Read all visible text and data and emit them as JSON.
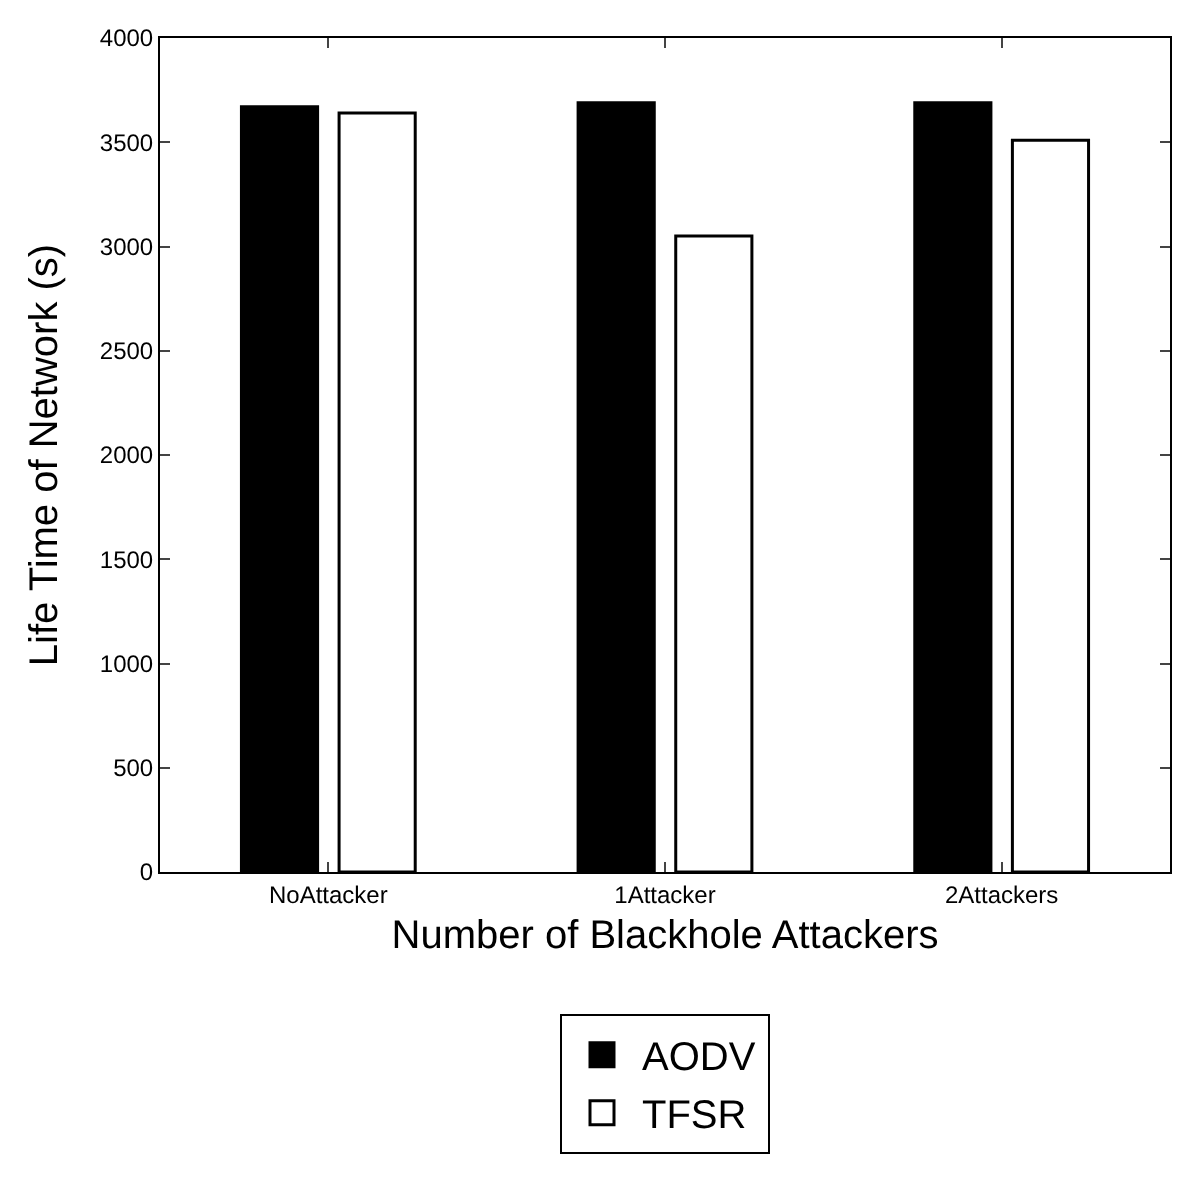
{
  "chart_data": {
    "type": "bar",
    "xlabel": "Number of Blackhole Attackers",
    "ylabel": "Life Time of Network (s)",
    "categories": [
      "NoAttacker",
      "1Attacker",
      "2Attackers"
    ],
    "series": [
      {
        "name": "AODV",
        "color": "#000000",
        "values": [
          3670,
          3690,
          3690
        ]
      },
      {
        "name": "TFSR",
        "color": "#ffffff",
        "values": [
          3640,
          3050,
          3510
        ]
      }
    ],
    "ylim": [
      0,
      4000
    ],
    "yticks": [
      0,
      500,
      1000,
      1500,
      2000,
      2500,
      3000,
      3500,
      4000
    ],
    "legend": "bottom"
  }
}
